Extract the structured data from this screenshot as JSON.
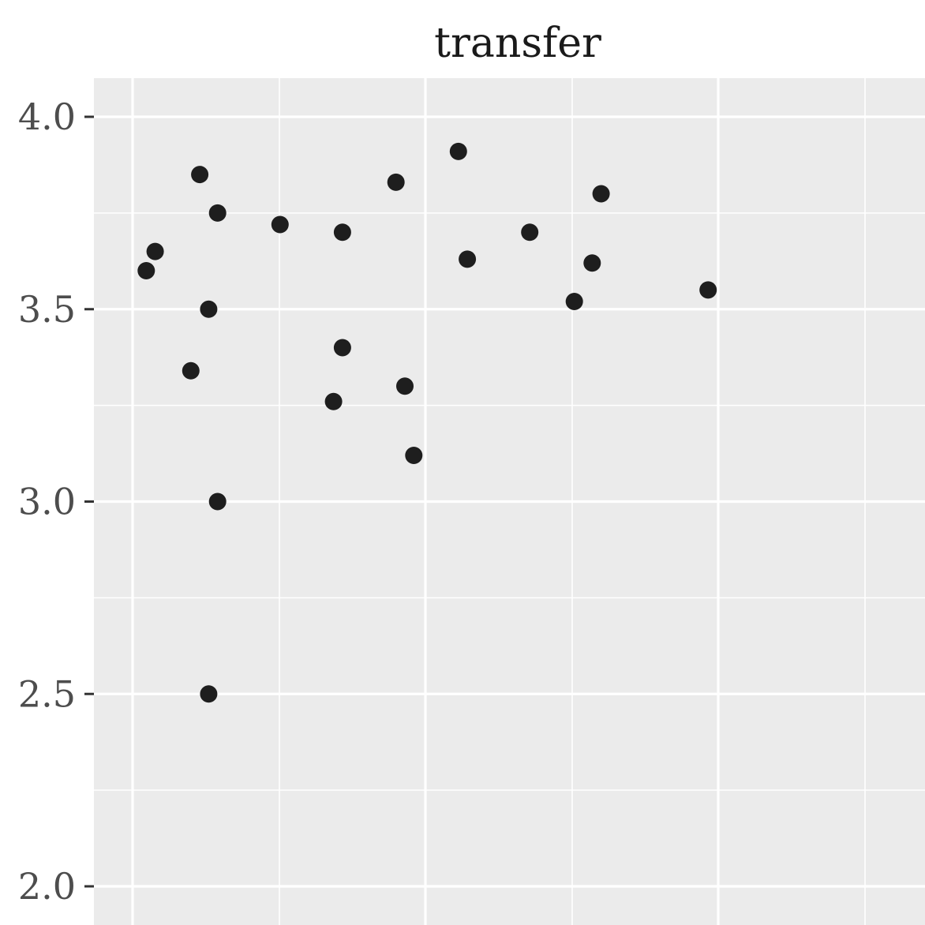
{
  "chart_data": {
    "type": "scatter",
    "title": "transfer",
    "xlabel": "",
    "ylabel": "",
    "y_ticks": [
      "2.0",
      "2.5",
      "3.0",
      "3.5",
      "4.0"
    ],
    "y_tick_values": [
      2.0,
      2.5,
      3.0,
      3.5,
      4.0
    ],
    "ylim": [
      1.9,
      4.1
    ],
    "xlim": [
      0.0,
      1.0
    ],
    "x_ticks": [],
    "grid": true,
    "colors": {
      "panel_background": "#EBEBEB",
      "grid_line": "#FFFFFF",
      "point": "#1E1E1E",
      "tick_label": "#4D4D4D",
      "title": "#1A1A1A"
    },
    "points": [
      {
        "x": 0.11,
        "y": 3.6
      },
      {
        "x": 0.12,
        "y": 3.65
      },
      {
        "x": 0.16,
        "y": 3.34
      },
      {
        "x": 0.17,
        "y": 3.85
      },
      {
        "x": 0.18,
        "y": 3.5
      },
      {
        "x": 0.18,
        "y": 2.5
      },
      {
        "x": 0.19,
        "y": 3.0
      },
      {
        "x": 0.19,
        "y": 3.75
      },
      {
        "x": 0.26,
        "y": 3.72
      },
      {
        "x": 0.32,
        "y": 3.26
      },
      {
        "x": 0.33,
        "y": 3.4
      },
      {
        "x": 0.33,
        "y": 3.7
      },
      {
        "x": 0.39,
        "y": 3.83
      },
      {
        "x": 0.4,
        "y": 3.3
      },
      {
        "x": 0.41,
        "y": 3.12
      },
      {
        "x": 0.46,
        "y": 3.91
      },
      {
        "x": 0.47,
        "y": 3.63
      },
      {
        "x": 0.54,
        "y": 3.7
      },
      {
        "x": 0.59,
        "y": 3.52
      },
      {
        "x": 0.61,
        "y": 3.62
      },
      {
        "x": 0.62,
        "y": 3.8
      },
      {
        "x": 0.74,
        "y": 3.55
      }
    ]
  }
}
